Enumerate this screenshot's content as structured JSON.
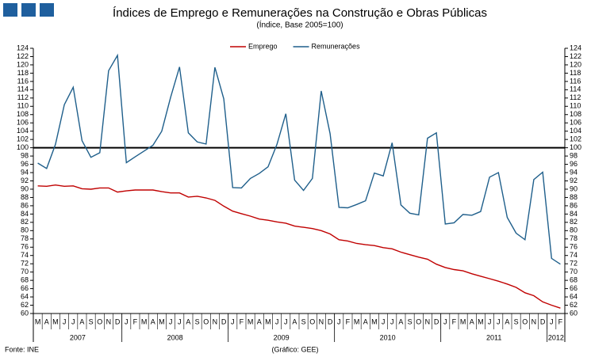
{
  "chart_data": {
    "type": "line",
    "title": "Índices de Emprego e Remunerações na Construção e Obras Públicas",
    "subtitle": "(Índice, Base 2005=100)",
    "source": "Fonte: INE",
    "credit": "(Gráfico: GEE)",
    "categories": [
      "M",
      "A",
      "M",
      "J",
      "J",
      "A",
      "S",
      "O",
      "N",
      "D",
      "J",
      "F",
      "M",
      "A",
      "M",
      "J",
      "J",
      "A",
      "S",
      "O",
      "N",
      "D",
      "J",
      "F",
      "M",
      "A",
      "M",
      "J",
      "J",
      "A",
      "S",
      "O",
      "N",
      "D",
      "J",
      "F",
      "M",
      "A",
      "M",
      "J",
      "J",
      "A",
      "S",
      "O",
      "N",
      "D",
      "J",
      "F",
      "M",
      "A",
      "M",
      "J",
      "J",
      "A",
      "S",
      "O",
      "N",
      "D",
      "J",
      "F"
    ],
    "year_groups": [
      {
        "label": "2007",
        "first": 0,
        "last": 9
      },
      {
        "label": "2008",
        "first": 10,
        "last": 21
      },
      {
        "label": "2009",
        "first": 22,
        "last": 33
      },
      {
        "label": "2010",
        "first": 34,
        "last": 45
      },
      {
        "label": "2011",
        "first": 46,
        "last": 57
      },
      {
        "label": "2012",
        "first": 58,
        "last": 59
      }
    ],
    "series": [
      {
        "name": "Emprego",
        "color": "#c00000",
        "values": [
          90.8,
          90.7,
          91.0,
          90.7,
          90.8,
          90.1,
          90.0,
          90.3,
          90.3,
          89.3,
          89.6,
          89.8,
          89.8,
          89.8,
          89.4,
          89.1,
          89.1,
          88.1,
          88.3,
          87.9,
          87.3,
          85.9,
          84.7,
          84.1,
          83.5,
          82.8,
          82.5,
          82.1,
          81.8,
          81.1,
          80.8,
          80.5,
          80.0,
          79.2,
          77.8,
          77.5,
          76.9,
          76.6,
          76.4,
          75.9,
          75.6,
          74.8,
          74.2,
          73.6,
          73.1,
          71.9,
          71.1,
          70.6,
          70.3,
          69.6,
          69.0,
          68.4,
          67.8,
          67.1,
          66.3,
          65.0,
          64.3,
          62.8,
          62.0,
          61.3
        ]
      },
      {
        "name": "Remunerações",
        "color": "#1f5f8b",
        "values": [
          96.3,
          95.0,
          100.8,
          110.4,
          114.6,
          101.7,
          97.7,
          98.8,
          118.6,
          122.3,
          96.4,
          97.8,
          99.2,
          100.6,
          104.0,
          112.2,
          119.5,
          103.6,
          101.4,
          100.9,
          119.4,
          111.8,
          90.4,
          90.3,
          92.6,
          93.8,
          95.4,
          100.8,
          108.2,
          92.2,
          89.7,
          92.6,
          113.7,
          103.4,
          85.6,
          85.5,
          86.3,
          87.2,
          93.9,
          93.2,
          101.2,
          86.2,
          84.2,
          83.8,
          102.3,
          103.6,
          81.6,
          81.9,
          83.9,
          83.7,
          84.6,
          92.9,
          94.0,
          83.2,
          79.4,
          77.8,
          92.3,
          94.1,
          73.3,
          71.9
        ]
      }
    ],
    "reference_line": 100,
    "ylim": [
      60,
      124
    ],
    "yticks": [
      60,
      62,
      64,
      66,
      68,
      70,
      72,
      74,
      76,
      78,
      80,
      82,
      84,
      86,
      88,
      90,
      92,
      94,
      96,
      98,
      100,
      102,
      104,
      106,
      108,
      110,
      112,
      114,
      116,
      118,
      120,
      122,
      124
    ],
    "y2lim": [
      60,
      124
    ],
    "y2ticks": [
      60,
      62,
      64,
      66,
      68,
      70,
      72,
      74,
      76,
      78,
      80,
      82,
      84,
      86,
      88,
      90,
      92,
      94,
      96,
      98,
      100,
      102,
      104,
      106,
      108,
      110,
      112,
      114,
      116,
      118,
      120,
      122,
      124
    ],
    "legend": "top"
  }
}
